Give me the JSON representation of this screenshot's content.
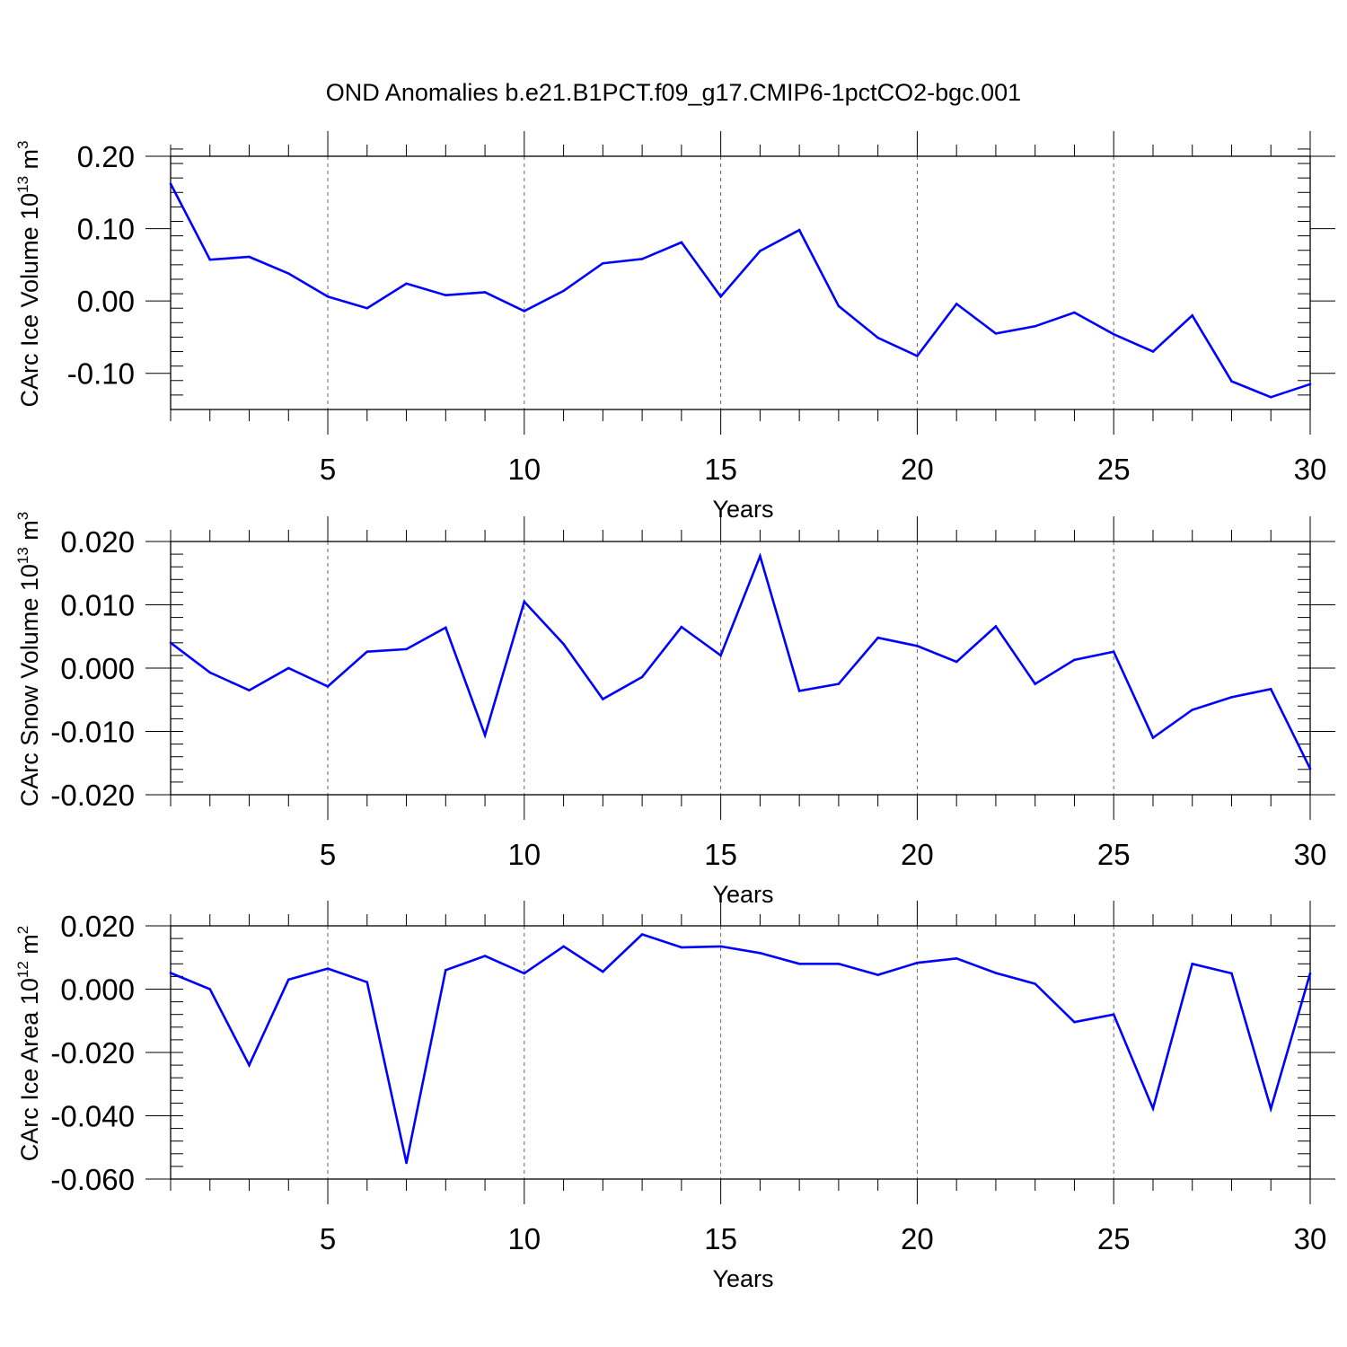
{
  "title": "OND Anomalies b.e21.B1PCT.f09_g17.CMIP6-1pctCO2-bgc.001",
  "line_color": "#0000ff",
  "chart_data": [
    {
      "type": "line",
      "title": "OND Anomalies b.e21.B1PCT.f09_g17.CMIP6-1pctCO2-bgc.001",
      "xlabel": "Years",
      "ylabel": {
        "main": "CArc Ice Volume 10",
        "exp": "13",
        "unit": " m",
        "unit_exp": "3"
      },
      "xlim": [
        1,
        30
      ],
      "ylim": [
        -0.15,
        0.2
      ],
      "x_ticks": [
        5,
        10,
        15,
        20,
        25,
        30
      ],
      "x_tick_labels": [
        "5",
        "10",
        "15",
        "20",
        "25",
        "30"
      ],
      "y_ticks": [
        0.2,
        0.1,
        0.0,
        -0.1
      ],
      "y_tick_labels": [
        "0.20",
        "0.10",
        "0.00",
        "-0.10"
      ],
      "y_minor_step": 0.02,
      "grid": "dashed vertical at labeled x ticks",
      "series": [
        {
          "name": "CArc Ice Volume",
          "x": [
            1,
            2,
            3,
            4,
            5,
            6,
            7,
            8,
            9,
            10,
            11,
            12,
            13,
            14,
            15,
            16,
            17,
            18,
            19,
            20,
            21,
            22,
            23,
            24,
            25,
            26,
            27,
            28,
            29,
            30
          ],
          "values": [
            0.162,
            0.057,
            0.061,
            0.038,
            0.006,
            -0.01,
            0.024,
            0.008,
            0.012,
            -0.014,
            0.014,
            0.052,
            0.058,
            0.081,
            0.006,
            0.069,
            0.098,
            -0.007,
            -0.051,
            -0.076,
            -0.004,
            -0.045,
            -0.035,
            -0.016,
            -0.046,
            -0.07,
            -0.02,
            -0.111,
            -0.133,
            -0.115
          ]
        }
      ]
    },
    {
      "type": "line",
      "xlabel": "Years",
      "ylabel": {
        "main": "CArc Snow Volume 10",
        "exp": "13",
        "unit": " m",
        "unit_exp": "3"
      },
      "xlim": [
        1,
        30
      ],
      "ylim": [
        -0.02,
        0.02
      ],
      "x_ticks": [
        5,
        10,
        15,
        20,
        25,
        30
      ],
      "x_tick_labels": [
        "5",
        "10",
        "15",
        "20",
        "25",
        "30"
      ],
      "y_ticks": [
        0.02,
        0.01,
        0.0,
        -0.01,
        -0.02
      ],
      "y_tick_labels": [
        "0.020",
        "0.010",
        "0.000",
        "-0.010",
        "-0.020"
      ],
      "y_minor_step": 0.002,
      "grid": "dashed vertical at labeled x ticks",
      "series": [
        {
          "name": "CArc Snow Volume",
          "x": [
            1,
            2,
            3,
            4,
            5,
            6,
            7,
            8,
            9,
            10,
            11,
            12,
            13,
            14,
            15,
            16,
            17,
            18,
            19,
            20,
            21,
            22,
            23,
            24,
            25,
            26,
            27,
            28,
            29,
            30
          ],
          "values": [
            0.004,
            -0.0007,
            -0.0035,
            0.0,
            -0.0029,
            0.0026,
            0.003,
            0.0064,
            -0.0106,
            0.0105,
            0.0038,
            -0.0049,
            -0.0014,
            0.0065,
            0.002,
            0.0177,
            -0.0036,
            -0.0025,
            0.0048,
            0.0035,
            0.001,
            0.0066,
            -0.0025,
            0.0013,
            0.0026,
            -0.011,
            -0.0066,
            -0.0046,
            -0.0033,
            -0.0159
          ]
        }
      ]
    },
    {
      "type": "line",
      "xlabel": "Years",
      "ylabel": {
        "main": "CArc Ice Area 10",
        "exp": "12",
        "unit": " m",
        "unit_exp": "2"
      },
      "xlim": [
        1,
        30
      ],
      "ylim": [
        -0.06,
        0.02
      ],
      "x_ticks": [
        5,
        10,
        15,
        20,
        25,
        30
      ],
      "x_tick_labels": [
        "5",
        "10",
        "15",
        "20",
        "25",
        "30"
      ],
      "y_ticks": [
        0.02,
        0.0,
        -0.02,
        -0.04,
        -0.06
      ],
      "y_tick_labels": [
        "0.020",
        "0.000",
        "-0.020",
        "-0.040",
        "-0.060"
      ],
      "y_minor_step": 0.004,
      "grid": "dashed vertical at labeled x ticks",
      "series": [
        {
          "name": "CArc Ice Area",
          "x": [
            1,
            2,
            3,
            4,
            5,
            6,
            7,
            8,
            9,
            10,
            11,
            12,
            13,
            14,
            15,
            16,
            17,
            18,
            19,
            20,
            21,
            22,
            23,
            24,
            25,
            26,
            27,
            28,
            29,
            30
          ],
          "values": [
            0.0051,
            0.0,
            -0.024,
            0.003,
            0.0065,
            0.0022,
            -0.0549,
            0.006,
            0.0105,
            0.005,
            0.0135,
            0.0055,
            0.0173,
            0.0132,
            0.0135,
            0.0114,
            0.008,
            0.008,
            0.0045,
            0.0083,
            0.0097,
            0.0051,
            0.0017,
            -0.0104,
            -0.008,
            -0.0377,
            0.008,
            0.005,
            -0.0378,
            0.005
          ]
        }
      ]
    }
  ]
}
